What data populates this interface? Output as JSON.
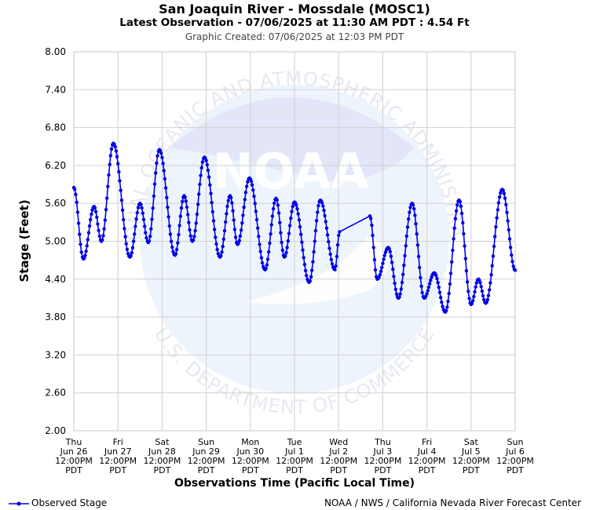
{
  "header": {
    "title": "San Joaquin River - Mossdale (MOSC1)",
    "subtitle": "Latest Observation - 07/06/2025 at 11:30 AM PDT : 4.54 Ft",
    "created": "Graphic Created: 07/06/2025 at 12:03 PM PDT"
  },
  "watermark": {
    "logo_text": "NOAA",
    "ring_top": "NATIONAL OCEANIC AND ATMOSPHERIC ADMINISTRATION",
    "ring_bottom": "U.S. DEPARTMENT OF COMMERCE"
  },
  "colors": {
    "series": "#0000e6",
    "grid": "#d0d0d0",
    "watermark": "#eef2fc"
  },
  "chart_data": {
    "type": "line",
    "ylabel": "Stage (Feet)",
    "xlabel": "Observations Time (Pacific Local Time)",
    "ylim": [
      2.0,
      8.0
    ],
    "yticks": [
      "2.00",
      "2.60",
      "3.20",
      "3.80",
      "4.40",
      "5.00",
      "5.60",
      "6.20",
      "6.80",
      "7.40",
      "8.00"
    ],
    "xlim_hours": [
      0,
      240
    ],
    "grid": true,
    "legend_position": "bottom-left",
    "xticks": [
      {
        "h": 0,
        "lines": [
          "Thu",
          "Jun 26",
          "12:00PM",
          "PDT"
        ]
      },
      {
        "h": 24,
        "lines": [
          "Fri",
          "Jun 27",
          "12:00PM",
          "PDT"
        ]
      },
      {
        "h": 48,
        "lines": [
          "Sat",
          "Jun 28",
          "12:00PM",
          "PDT"
        ]
      },
      {
        "h": 72,
        "lines": [
          "Sun",
          "Jun 29",
          "12:00PM",
          "PDT"
        ]
      },
      {
        "h": 96,
        "lines": [
          "Mon",
          "Jun 30",
          "12:00PM",
          "PDT"
        ]
      },
      {
        "h": 120,
        "lines": [
          "Tue",
          "Jul 1",
          "12:00PM",
          "PDT"
        ]
      },
      {
        "h": 144,
        "lines": [
          "Wed",
          "Jul 2",
          "12:00PM",
          "PDT"
        ]
      },
      {
        "h": 168,
        "lines": [
          "Thu",
          "Jul 3",
          "12:00PM",
          "PDT"
        ]
      },
      {
        "h": 192,
        "lines": [
          "Fri",
          "Jul 4",
          "12:00PM",
          "PDT"
        ]
      },
      {
        "h": 216,
        "lines": [
          "Sat",
          "Jul 5",
          "12:00PM",
          "PDT"
        ]
      },
      {
        "h": 240,
        "lines": [
          "Sun",
          "Jul 6",
          "12:00PM",
          "PDT"
        ]
      }
    ],
    "series": [
      {
        "name": "Observed Stage",
        "x_unit": "hours after Thu Jun 26 12:00PM PDT",
        "points": [
          [
            0,
            5.85
          ],
          [
            5.2,
            4.72
          ],
          [
            11,
            5.55
          ],
          [
            15,
            5.0
          ],
          [
            21.5,
            6.55
          ],
          [
            30.5,
            4.75
          ],
          [
            36,
            5.6
          ],
          [
            40.5,
            4.98
          ],
          [
            46.5,
            6.45
          ],
          [
            55,
            4.78
          ],
          [
            60,
            5.72
          ],
          [
            64.5,
            5.0
          ],
          [
            71,
            6.33
          ],
          [
            79.5,
            4.75
          ],
          [
            85,
            5.72
          ],
          [
            89,
            4.95
          ],
          [
            95.5,
            6.0
          ],
          [
            104,
            4.55
          ],
          [
            110,
            5.68
          ],
          [
            114.5,
            4.75
          ],
          [
            120,
            5.62
          ],
          [
            128,
            4.35
          ],
          [
            134,
            5.65
          ],
          [
            142,
            4.55
          ],
          [
            144.5,
            5.15
          ],
          [
            161,
            5.4
          ],
          [
            165,
            4.4
          ],
          [
            171,
            4.9
          ],
          [
            176.5,
            4.1
          ],
          [
            184,
            5.6
          ],
          [
            190.5,
            4.1
          ],
          [
            196,
            4.5
          ],
          [
            202,
            3.88
          ],
          [
            209.5,
            5.65
          ],
          [
            216,
            4.0
          ],
          [
            220,
            4.4
          ],
          [
            224,
            4.02
          ],
          [
            233,
            5.82
          ],
          [
            240,
            4.54
          ]
        ]
      }
    ]
  },
  "legend": {
    "label": "Observed Stage"
  },
  "footer": {
    "credit": "NOAA / NWS / California Nevada River Forecast Center"
  }
}
